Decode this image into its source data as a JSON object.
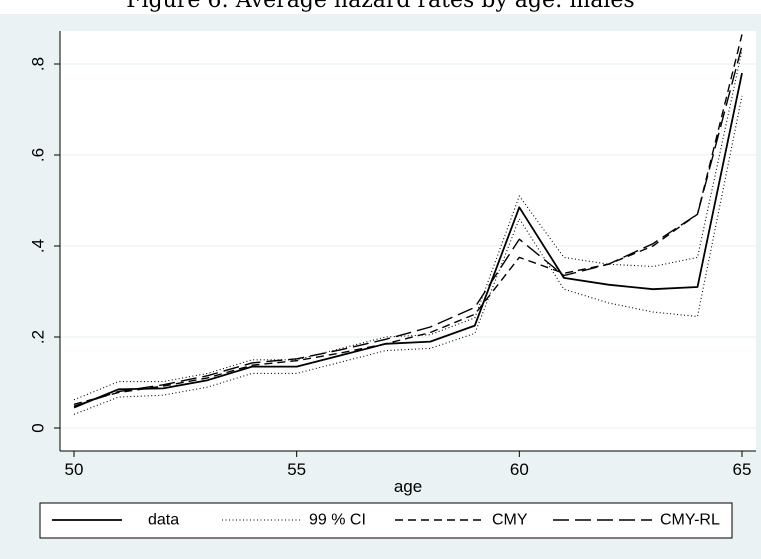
{
  "caption": "Figure 6: Average hazard rates by age: males",
  "colors": {
    "background": "#eaf2f3",
    "plot_area": "#ffffff",
    "grid": "#eaf2f3",
    "line": "#000000"
  },
  "chart_data": {
    "type": "line",
    "xlabel": "age",
    "ylabel": "",
    "xlim": [
      50,
      65
    ],
    "ylim": [
      0,
      0.88
    ],
    "grid": true,
    "legend_position": "bottom",
    "x": [
      50,
      51,
      52,
      53,
      54,
      55,
      56,
      57,
      58,
      59,
      60,
      61,
      62,
      63,
      64,
      65
    ],
    "x_ticks": [
      {
        "value": 50,
        "label": "50"
      },
      {
        "value": 55,
        "label": "55"
      },
      {
        "value": 60,
        "label": "60"
      },
      {
        "value": 65,
        "label": "65"
      }
    ],
    "y_ticks": [
      {
        "value": 0,
        "label": "0"
      },
      {
        "value": 0.2,
        "label": ".2"
      },
      {
        "value": 0.4,
        "label": ".4"
      },
      {
        "value": 0.6,
        "label": ".6"
      },
      {
        "value": 0.8,
        "label": ".8"
      }
    ],
    "series": [
      {
        "name": "data",
        "dash": "",
        "width": 1.8,
        "values": [
          0.045,
          0.085,
          0.087,
          0.105,
          0.135,
          0.135,
          0.16,
          0.185,
          0.19,
          0.225,
          0.485,
          0.33,
          0.315,
          0.305,
          0.31,
          0.78
        ]
      },
      {
        "name": "99 % CI",
        "dash": "1 2.5",
        "width": 1.1,
        "values": [
          0.062,
          0.102,
          0.102,
          0.12,
          0.15,
          0.15,
          0.175,
          0.2,
          0.205,
          0.242,
          0.51,
          0.375,
          0.36,
          0.355,
          0.375,
          0.83
        ]
      },
      {
        "name": "",
        "dash": "1 2.5",
        "width": 1.1,
        "values": [
          0.03,
          0.068,
          0.072,
          0.09,
          0.12,
          0.12,
          0.145,
          0.17,
          0.175,
          0.208,
          0.46,
          0.305,
          0.275,
          0.255,
          0.245,
          0.73
        ]
      },
      {
        "name": "CMY",
        "dash": "8 5",
        "width": 1.4,
        "values": [
          0.052,
          0.078,
          0.092,
          0.11,
          0.138,
          0.148,
          0.165,
          0.185,
          0.21,
          0.25,
          0.375,
          0.34,
          0.36,
          0.4,
          0.47,
          0.865
        ]
      },
      {
        "name": "CMY-RL",
        "dash": "16 6",
        "width": 1.4,
        "values": [
          0.048,
          0.08,
          0.095,
          0.115,
          0.143,
          0.152,
          0.172,
          0.195,
          0.222,
          0.265,
          0.415,
          0.335,
          0.36,
          0.405,
          0.47,
          0.84
        ]
      }
    ]
  }
}
